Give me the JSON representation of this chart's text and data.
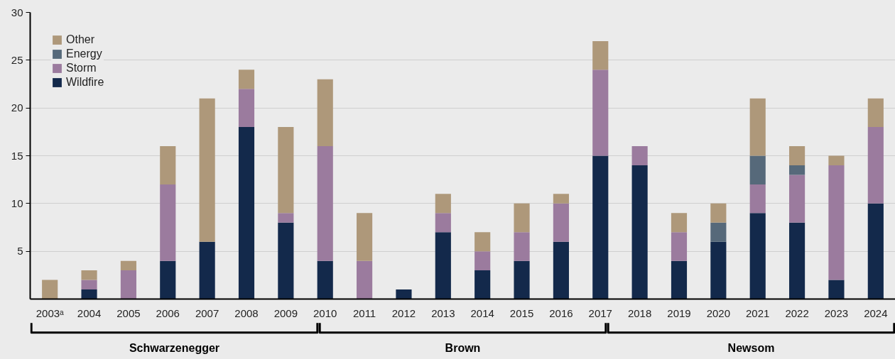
{
  "chart_data": {
    "type": "bar",
    "stacked": true,
    "categories": [
      "2003ᵃ",
      "2004",
      "2005",
      "2006",
      "2007",
      "2008",
      "2009",
      "2010",
      "2011",
      "2012",
      "2013",
      "2014",
      "2015",
      "2016",
      "2017",
      "2018",
      "2019",
      "2020",
      "2021",
      "2022",
      "2023",
      "2024"
    ],
    "series": [
      {
        "name": "Wildfire",
        "color": "#13294b",
        "values": [
          0,
          1,
          0,
          4,
          6,
          18,
          8,
          4,
          0,
          1,
          7,
          3,
          4,
          6,
          15,
          14,
          4,
          6,
          9,
          8,
          2,
          10
        ]
      },
      {
        "name": "Storm",
        "color": "#9b7b9e",
        "values": [
          0,
          1,
          3,
          8,
          0,
          4,
          1,
          12,
          4,
          0,
          2,
          2,
          3,
          4,
          9,
          2,
          3,
          0,
          3,
          5,
          12,
          8
        ]
      },
      {
        "name": "Energy",
        "color": "#56697a",
        "values": [
          0,
          0,
          0,
          0,
          0,
          0,
          0,
          0,
          0,
          0,
          0,
          0,
          0,
          0,
          0,
          0,
          0,
          2,
          3,
          1,
          0,
          0
        ]
      },
      {
        "name": "Other",
        "color": "#ae987a",
        "values": [
          2,
          1,
          1,
          4,
          15,
          2,
          9,
          7,
          5,
          0,
          2,
          2,
          3,
          1,
          3,
          0,
          2,
          2,
          6,
          2,
          1,
          3
        ]
      }
    ],
    "ylim": [
      0,
      30
    ],
    "yticks": [
      5,
      10,
      15,
      20,
      25,
      30
    ],
    "grid": "y",
    "legend": "top left",
    "annotations": [
      "Schwarzenegger",
      "Brown",
      "Newsom"
    ]
  }
}
